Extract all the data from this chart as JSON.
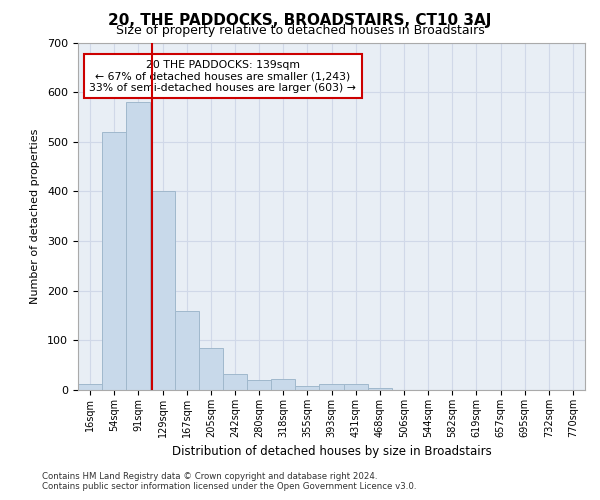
{
  "title": "20, THE PADDOCKS, BROADSTAIRS, CT10 3AJ",
  "subtitle": "Size of property relative to detached houses in Broadstairs",
  "xlabel": "Distribution of detached houses by size in Broadstairs",
  "ylabel": "Number of detached properties",
  "bin_labels": [
    "16sqm",
    "54sqm",
    "91sqm",
    "129sqm",
    "167sqm",
    "205sqm",
    "242sqm",
    "280sqm",
    "318sqm",
    "355sqm",
    "393sqm",
    "431sqm",
    "468sqm",
    "506sqm",
    "544sqm",
    "582sqm",
    "619sqm",
    "657sqm",
    "695sqm",
    "732sqm",
    "770sqm"
  ],
  "bar_heights": [
    13,
    520,
    580,
    400,
    160,
    85,
    33,
    20,
    22,
    9,
    12,
    12,
    4,
    0,
    0,
    0,
    0,
    0,
    0,
    0,
    0
  ],
  "bar_color": "#c8d9ea",
  "bar_edgecolor": "#a0b8cc",
  "grid_color": "#d0d8e8",
  "bg_color": "#e8eef5",
  "red_line_x": 2.55,
  "annotation_text": "20 THE PADDOCKS: 139sqm\n← 67% of detached houses are smaller (1,243)\n33% of semi-detached houses are larger (603) →",
  "annotation_box_color": "#ffffff",
  "annotation_box_edgecolor": "#cc0000",
  "ylim": [
    0,
    700
  ],
  "yticks": [
    0,
    100,
    200,
    300,
    400,
    500,
    600,
    700
  ],
  "footer1": "Contains HM Land Registry data © Crown copyright and database right 2024.",
  "footer2": "Contains public sector information licensed under the Open Government Licence v3.0."
}
